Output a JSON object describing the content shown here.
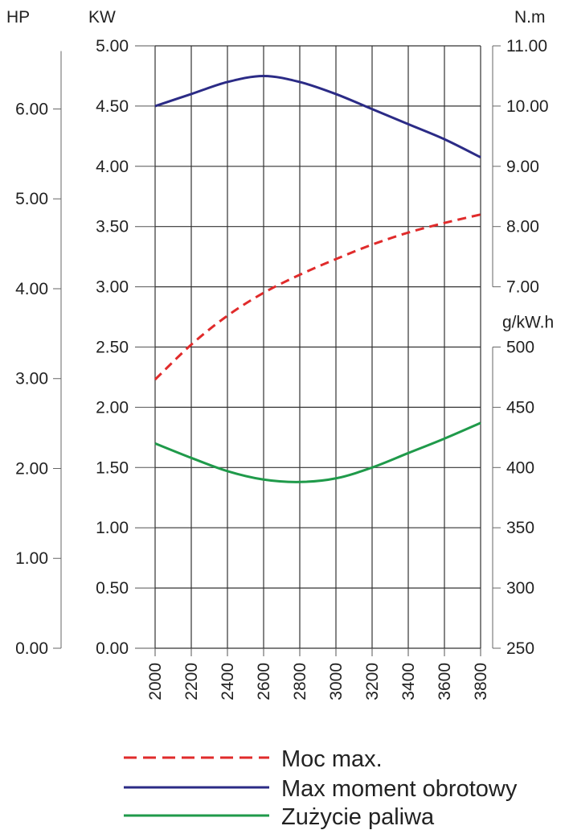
{
  "chart_data": {
    "type": "line",
    "x": [
      2000,
      2200,
      2400,
      2600,
      2800,
      3000,
      3200,
      3400,
      3600,
      3800
    ],
    "xlim": [
      2000,
      3800
    ],
    "xlabel": "",
    "axes": {
      "hp": {
        "unit": "HP",
        "ticks": [
          "0.00",
          "1.00",
          "2.00",
          "3.00",
          "4.00",
          "5.00",
          "6.00"
        ],
        "range": [
          0,
          6
        ]
      },
      "kw": {
        "unit": "KW",
        "ticks": [
          "0.00",
          "0.50",
          "1.00",
          "1.50",
          "2.00",
          "2.50",
          "3.00",
          "3.50",
          "4.00",
          "4.50",
          "5.00"
        ],
        "range": [
          0,
          5
        ]
      },
      "nm": {
        "unit": "N.m",
        "ticks": [
          "7.00",
          "8.00",
          "9.00",
          "10.00",
          "11.00"
        ],
        "range": [
          7,
          11
        ]
      },
      "gkw": {
        "unit": "g/kW.h",
        "ticks": [
          "250",
          "300",
          "350",
          "400",
          "450",
          "500"
        ],
        "range": [
          250,
          500
        ]
      }
    },
    "grid": true,
    "series": [
      {
        "name": "Moc max.",
        "axis": "kw",
        "color": "#e02b2b",
        "dash": true,
        "values": [
          2.23,
          2.52,
          2.76,
          2.95,
          3.1,
          3.23,
          3.35,
          3.45,
          3.53,
          3.6
        ]
      },
      {
        "name": "Max moment obrotowy",
        "axis": "nm",
        "color": "#2b2b86",
        "dash": false,
        "values": [
          10.0,
          10.2,
          10.4,
          10.5,
          10.4,
          10.2,
          9.95,
          9.7,
          9.45,
          9.15
        ]
      },
      {
        "name": "Zużycie paliwa",
        "axis": "gkw",
        "color": "#1f9a4a",
        "dash": false,
        "values": [
          420,
          408,
          397,
          390,
          388,
          391,
          400,
          412,
          424,
          437
        ]
      }
    ],
    "legend": "bottom"
  }
}
